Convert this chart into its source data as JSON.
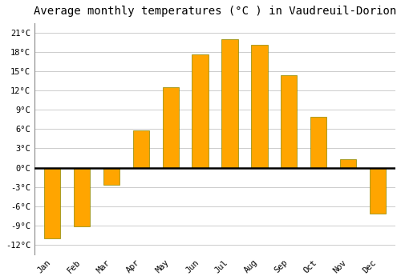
{
  "months": [
    "Jan",
    "Feb",
    "Mar",
    "Apr",
    "May",
    "Jun",
    "Jul",
    "Aug",
    "Sep",
    "Oct",
    "Nov",
    "Dec"
  ],
  "temperatures": [
    -11.0,
    -9.1,
    -2.7,
    5.8,
    12.5,
    17.7,
    20.0,
    19.1,
    14.4,
    7.9,
    1.3,
    -7.2
  ],
  "bar_color_top": "#FFB833",
  "bar_color": "#FFA500",
  "bar_edge_color": "#888800",
  "title": "Average monthly temperatures (°C ) in Vaudreuil-Dorion",
  "title_fontsize": 10,
  "plot_bg_color": "#ffffff",
  "fig_bg_color": "#ffffff",
  "grid_color": "#cccccc",
  "yticks": [
    -12,
    -9,
    -6,
    -3,
    0,
    3,
    6,
    9,
    12,
    15,
    18,
    21
  ],
  "ylim": [
    -13.5,
    22.5
  ],
  "zero_line_color": "#000000",
  "tick_label_suffix": "°C",
  "bar_width": 0.55
}
